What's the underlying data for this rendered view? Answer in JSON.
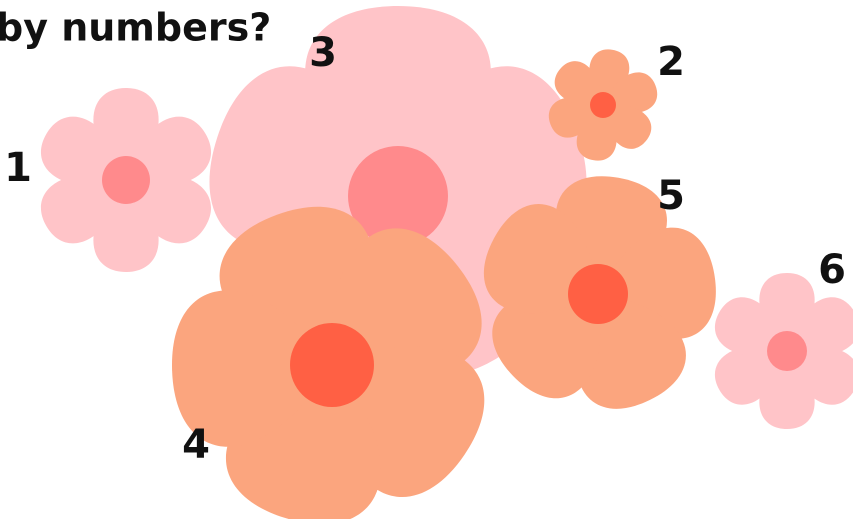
{
  "header": {
    "title": "by numbers?"
  },
  "labels": [
    "1",
    "2",
    "3",
    "4",
    "5",
    "6"
  ]
}
